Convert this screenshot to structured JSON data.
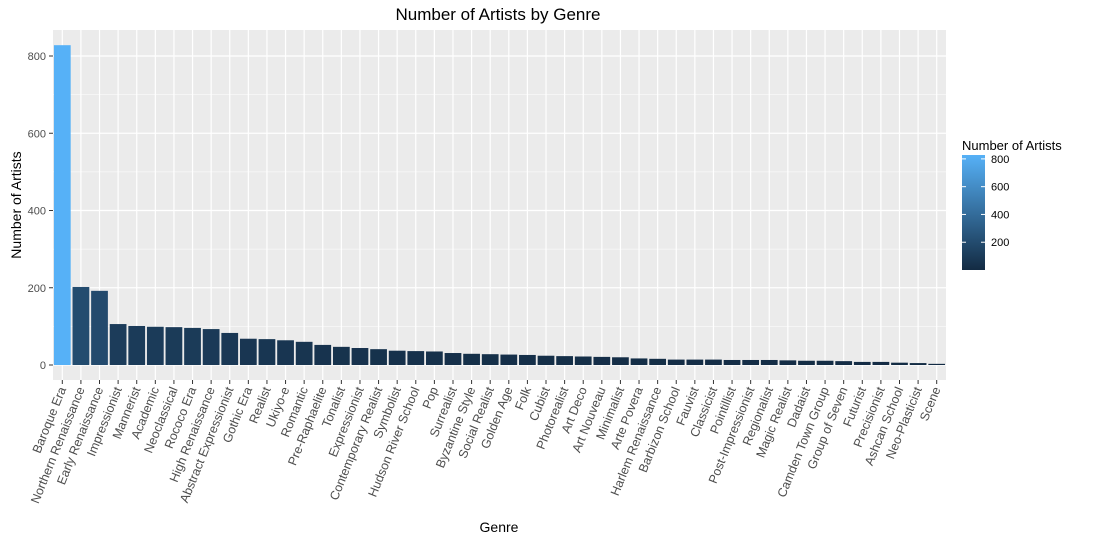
{
  "chart_data": {
    "type": "bar",
    "title": "Number of Artists by Genre",
    "xlabel": "Genre",
    "ylabel": "Number of Artists",
    "ylim": [
      0,
      850
    ],
    "yticks": [
      0,
      200,
      400,
      600,
      800
    ],
    "grid": true,
    "legend": {
      "title": "Number of Artists",
      "placement": "right",
      "ticks": [
        200,
        400,
        600,
        800
      ],
      "range": [
        0,
        828
      ]
    },
    "colors": {
      "low": "#132B43",
      "high": "#56B1F7",
      "panel": "#EBEBEB",
      "grid": "#FFFFFF"
    },
    "categories": [
      "Baroque Era",
      "Northern Renaissance",
      "Early Renaissance",
      "Impressionist",
      "Mannerist",
      "Academic",
      "Neoclassical",
      "Rococo Era",
      "High Renaissance",
      "Abstract Expressionist",
      "Gothic Era",
      "Realist",
      "Ukiyo-e",
      "Romantic",
      "Pre-Raphaelite",
      "Tonalist",
      "Expressionist",
      "Contemporary Realist",
      "Symbolist",
      "Hudson River School",
      "Pop",
      "Surrealist",
      "Byzantine Style",
      "Social Realist",
      "Golden Age",
      "Folk",
      "Cubist",
      "Photorealist",
      "Art Deco",
      "Art Nouveau",
      "Minimalist",
      "Arte Povera",
      "Harlem Renaissance",
      "Barbizon School",
      "Fauvist",
      "Classicist",
      "Pointillist",
      "Post-Impressionist",
      "Regionalist",
      "Magic Realist",
      "Dadaist",
      "Camden Town Group",
      "Group of Seven",
      "Futurist",
      "Precisionist",
      "Ashcan School",
      "Neo-Plasticist",
      "Scene"
    ],
    "values": [
      828,
      202,
      192,
      106,
      101,
      99,
      98,
      96,
      93,
      83,
      68,
      67,
      64,
      60,
      52,
      47,
      44,
      41,
      37,
      36,
      35,
      31,
      29,
      28,
      27,
      26,
      24,
      23,
      22,
      21,
      20,
      17,
      16,
      14,
      14,
      14,
      13,
      13,
      13,
      12,
      11,
      11,
      10,
      8,
      8,
      6,
      5,
      3
    ]
  }
}
